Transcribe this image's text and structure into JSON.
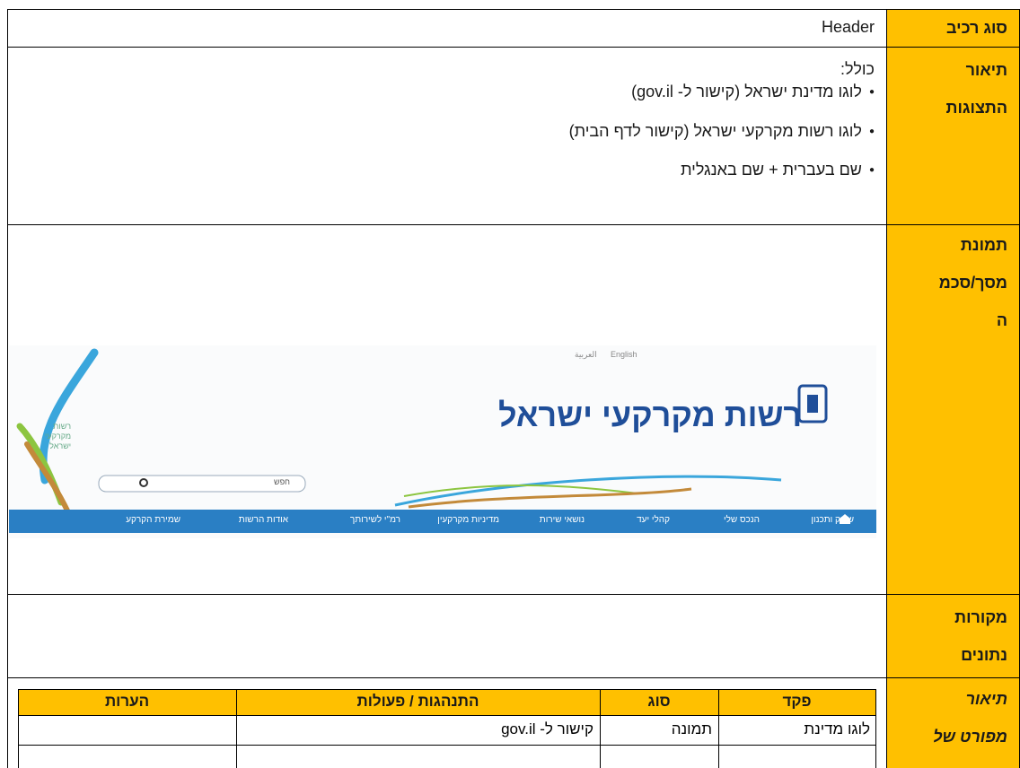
{
  "rows": [
    {
      "label": [
        "סוג רכיב"
      ],
      "content": "Header"
    },
    {
      "label": [
        "תיאור",
        "התצוגות"
      ],
      "intro": "כולל:",
      "bullets": [
        "לוגו מדינת ישראל (קישור ל- gov.il)",
        "לוגו רשות מקרקעי ישראל (קישור לדף הבית)",
        "שם בעברית + שם באנגלית"
      ]
    },
    {
      "label": [
        "תמונת",
        "מסך/סכמ",
        "ה"
      ],
      "image": {
        "top_links": [
          "English",
          "العربية"
        ],
        "title": "רשות מקרקעי ישראל",
        "side_logo": [
          "רשות",
          "מקרקעי",
          "ישראל"
        ],
        "search": "חפש",
        "nav": [
          "שיווק ותכנון",
          "הנכס שלי",
          "קהלי יעד",
          "נושאי שירות",
          "מדיניות מקרקעין",
          "רמ\"י לשירותך",
          "אודות הרשות",
          "שמירת הקרקע"
        ]
      }
    },
    {
      "label": [
        "מקורות",
        "נתונים"
      ]
    },
    {
      "label": [
        "תיאור",
        "מפורט של"
      ]
    }
  ],
  "details_table": {
    "headers": [
      "פקד",
      "סוג",
      "התנהגות / פעולות",
      "הערות"
    ],
    "rows": [
      [
        "לוגו מדינת",
        "תמונה",
        "קישור ל- gov.il"
      ]
    ]
  }
}
